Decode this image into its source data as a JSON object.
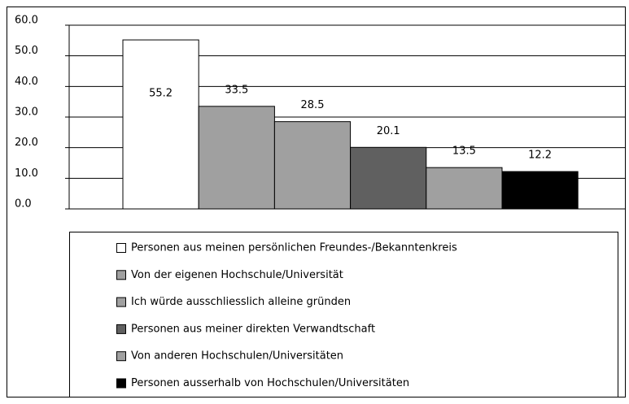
{
  "chart_data": {
    "type": "bar",
    "series": [
      {
        "name": "Personen aus meinen persönlichen Freundes-/Bekanntenkreis",
        "color": "#ffffff",
        "values": [
          55.2
        ]
      },
      {
        "name": "Von der eigenen Hochschule/Universität",
        "color": "#a0a0a0",
        "values": [
          33.5
        ]
      },
      {
        "name": "Ich würde ausschliesslich alleine gründen",
        "color": "#a0a0a0",
        "values": [
          28.5
        ]
      },
      {
        "name": "Personen aus meiner direkten Verwandtschaft",
        "color": "#606060",
        "values": [
          20.1
        ]
      },
      {
        "name": "Von anderen Hochschulen/Universitäten",
        "color": "#a0a0a0",
        "values": [
          13.5
        ]
      },
      {
        "name": "Personen ausserhalb von Hochschulen/Universitäten",
        "color": "#000000",
        "values": [
          12.2
        ]
      }
    ],
    "ylim": [
      0,
      60
    ],
    "yticks": [
      {
        "value": 0,
        "label": "0.0"
      },
      {
        "value": 10,
        "label": "10.0"
      },
      {
        "value": 20,
        "label": "20.0"
      },
      {
        "value": 30,
        "label": "30.0"
      },
      {
        "value": 40,
        "label": "40.0"
      },
      {
        "value": 50,
        "label": "50.0"
      },
      {
        "value": 60,
        "label": "60.0"
      }
    ],
    "grid": true,
    "legend": "bottom"
  }
}
